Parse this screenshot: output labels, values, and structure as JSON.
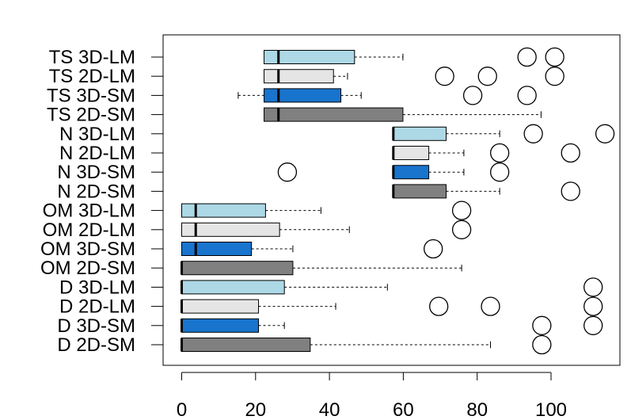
{
  "chart_data": {
    "type": "boxplot",
    "orientation": "horizontal",
    "title": "",
    "xlabel": "",
    "ylabel": "",
    "xlim": [
      -5,
      118
    ],
    "x_ticks": [
      0,
      20,
      40,
      60,
      80,
      100
    ],
    "x_tick_labels": [
      "0",
      "20",
      "40",
      "60",
      "80",
      "100"
    ],
    "grid": false,
    "colors": {
      "SM_3D": "#1874CD",
      "SM_2D": "#808080",
      "LM_3D": "#ADD8E6",
      "LM_2D": "#E5E5E5",
      "outline": "#000000"
    },
    "categories": [
      {
        "label": "TS 3D-LM",
        "color": "#ADD8E6",
        "whisker_low": 22.3,
        "q1": 22.3,
        "median": 26.2,
        "q3": 46.8,
        "whisker_high": 59.9,
        "outliers": [
          93.5,
          101
        ]
      },
      {
        "label": "TS 2D-LM",
        "color": "#E5E5E5",
        "whisker_low": 22.3,
        "q1": 22.3,
        "median": 26.2,
        "q3": 41.1,
        "whisker_high": 44.9,
        "outliers": [
          71.2,
          82.8,
          101
        ]
      },
      {
        "label": "TS 3D-SM",
        "color": "#1874CD",
        "whisker_low": 15.3,
        "q1": 22.3,
        "median": 26.2,
        "q3": 43.1,
        "whisker_high": 48.6,
        "outliers": [
          78.8,
          93.5
        ]
      },
      {
        "label": "TS 2D-SM",
        "color": "#808080",
        "whisker_low": 22.3,
        "q1": 22.3,
        "median": 26.2,
        "q3": 59.9,
        "whisker_high": 97.3,
        "outliers": []
      },
      {
        "label": "N 3D-LM",
        "color": "#ADD8E6",
        "whisker_low": 57.3,
        "q1": 57.3,
        "median": 57.3,
        "q3": 71.6,
        "whisker_high": 86.1,
        "outliers": [
          95.2,
          114.6
        ]
      },
      {
        "label": "N 2D-LM",
        "color": "#E5E5E5",
        "whisker_low": 57.3,
        "q1": 57.3,
        "median": 57.3,
        "q3": 66.9,
        "whisker_high": 76.4,
        "outliers": [
          86.1,
          105.3
        ]
      },
      {
        "label": "N 3D-SM",
        "color": "#1874CD",
        "whisker_low": 57.3,
        "q1": 57.3,
        "median": 57.3,
        "q3": 66.9,
        "whisker_high": 76.4,
        "outliers": [
          28.6,
          86.1
        ]
      },
      {
        "label": "N 2D-SM",
        "color": "#808080",
        "whisker_low": 57.3,
        "q1": 57.3,
        "median": 57.3,
        "q3": 71.6,
        "whisker_high": 86.1,
        "outliers": [
          105.3
        ]
      },
      {
        "label": "OM 3D-LM",
        "color": "#ADD8E6",
        "whisker_low": 0,
        "q1": 0,
        "median": 3.8,
        "q3": 22.7,
        "whisker_high": 37.7,
        "outliers": [
          75.8
        ]
      },
      {
        "label": "OM 2D-LM",
        "color": "#E5E5E5",
        "whisker_low": 0,
        "q1": 0,
        "median": 3.8,
        "q3": 26.5,
        "whisker_high": 45.4,
        "outliers": [
          75.8
        ]
      },
      {
        "label": "OM 3D-SM",
        "color": "#1874CD",
        "whisker_low": 0,
        "q1": 0,
        "median": 3.8,
        "q3": 18.9,
        "whisker_high": 30.1,
        "outliers": [
          68.1
        ]
      },
      {
        "label": "OM 2D-SM",
        "color": "#808080",
        "whisker_low": 0,
        "q1": 0,
        "median": 0,
        "q3": 30.1,
        "whisker_high": 75.8,
        "outliers": []
      },
      {
        "label": "D 3D-LM",
        "color": "#ADD8E6",
        "whisker_low": 0,
        "q1": 0,
        "median": 0,
        "q3": 27.8,
        "whisker_high": 55.7,
        "outliers": [
          111.4
        ]
      },
      {
        "label": "D 2D-LM",
        "color": "#E5E5E5",
        "whisker_low": 0,
        "q1": 0,
        "median": 0,
        "q3": 20.8,
        "whisker_high": 41.7,
        "outliers": [
          69.6,
          83.6,
          111.4
        ]
      },
      {
        "label": "D 3D-SM",
        "color": "#1874CD",
        "whisker_low": 0,
        "q1": 0,
        "median": 0,
        "q3": 20.8,
        "whisker_high": 27.8,
        "outliers": [
          97.5,
          111.4
        ]
      },
      {
        "label": "D 2D-SM",
        "color": "#808080",
        "whisker_low": 0,
        "q1": 0,
        "median": 0,
        "q3": 34.8,
        "whisker_high": 83.6,
        "outliers": [
          97.5
        ]
      }
    ]
  }
}
